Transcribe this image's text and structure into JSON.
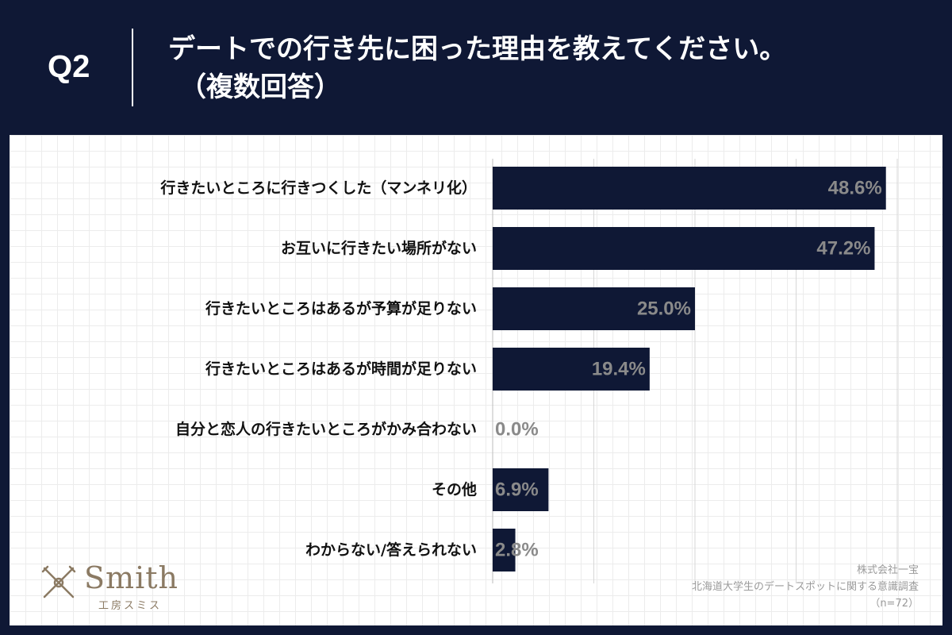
{
  "header": {
    "q_number": "Q2",
    "question": "デートでの行き先に困った理由を教えてください。",
    "question_sub": "（複数回答）"
  },
  "chart_data": {
    "type": "bar",
    "orientation": "horizontal",
    "categories": [
      "行きたいところに行きつくした（マンネリ化）",
      "お互いに行きたい場所がない",
      "行きたいところはあるが予算が足りない",
      "行きたいところはあるが時間が足りない",
      "自分と恋人の行きたいところがかみ合わない",
      "その他",
      "わからない/答えられない"
    ],
    "values": [
      48.6,
      47.2,
      25.0,
      19.4,
      0.0,
      6.9,
      2.8
    ],
    "value_labels": [
      "48.6%",
      "47.2%",
      "25.0%",
      "19.4%",
      "0.0%",
      "6.9%",
      "2.8%"
    ],
    "xlim": [
      0,
      50
    ],
    "grid_step": 12.5,
    "unit": "%",
    "bar_color": "#0f1835",
    "label_color": "#8a8a8a"
  },
  "footer": {
    "logo_text": "Smith",
    "logo_sub": "工房スミス",
    "source_company": "株式会社一宝",
    "source_survey": "北海道大学生のデートスポットに関する意識調査",
    "sample": "（n=72）"
  },
  "colors": {
    "header_bg": "#0f1835",
    "logo": "#8b7a63"
  }
}
